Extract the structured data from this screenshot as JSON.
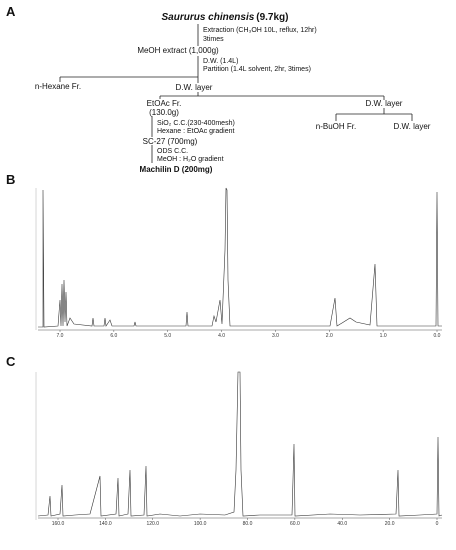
{
  "panel_labels": [
    "A",
    "B",
    "C"
  ],
  "flowchart": {
    "nodes": [
      {
        "label": "Saururus chinensis",
        "extra": "(9.7kg)"
      },
      {
        "label": "MeOH extract (1,000g)"
      },
      {
        "label": "n-Hexane Fr."
      },
      {
        "label": "D.W. layer"
      },
      {
        "label": "EtOAc Fr.",
        "extra": "(130.0g)"
      },
      {
        "label": "D.W. layer"
      },
      {
        "label": "n-BuOH Fr."
      },
      {
        "label": "D.W. layer"
      },
      {
        "label": "SC-27 (700mg)"
      },
      {
        "label": "Machilin D (200mg)"
      }
    ],
    "steps": [
      [
        "Extraction (CH₃OH 10L, reflux, 12hr)",
        "3times"
      ],
      [
        "D.W. (1.4L)",
        "Partition (1.4L solvent, 2hr, 3times)"
      ],
      [
        "SiO₂ C.C.(230-400mesh)",
        "Hexane : EtOAc gradient"
      ],
      [
        "ODS C.C.",
        "MeOH : H₂O gradient"
      ]
    ]
  },
  "spectrum_b": {
    "axis_labels": [
      "7.0",
      "6.0",
      "5.0",
      "4.0",
      "3.0",
      "2.0",
      "1.0",
      "0.0"
    ]
  },
  "spectrum_c": {
    "axis_labels": [
      "160.0",
      "140.0",
      "120.0",
      "100.0",
      "80.0",
      "60.0",
      "40.0",
      "20.0",
      "0"
    ]
  }
}
